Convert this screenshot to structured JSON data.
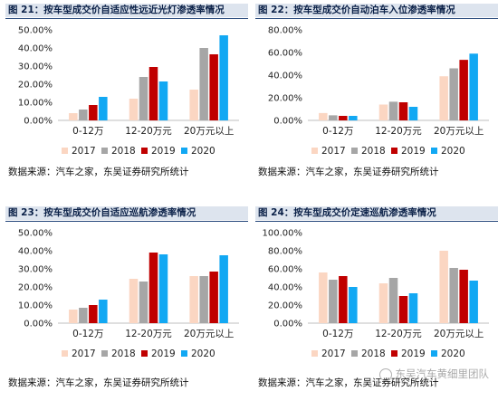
{
  "colors": {
    "series": [
      "#fbd6c2",
      "#a6a6a6",
      "#c00000",
      "#12a8f3"
    ],
    "title_bg": "#dde4ee",
    "title_line": "#24467a"
  },
  "panels": [
    {
      "title": "图 21：按车型成交价自适应性远近光灯渗透率情况",
      "source": "数据来源：汽车之家，东吴证券研究所统计"
    },
    {
      "title": "图 22：按车型成交价自动泊车入位渗透率情况",
      "source": "数据来源：汽车之家，东吴证券研究所统计"
    },
    {
      "title": "图 23：按车型成交价自适应巡航渗透率情况",
      "source": "数据来源：汽车之家，东吴证券研究所统计"
    },
    {
      "title": "图 24：按车型成交价定速巡航渗透率情况",
      "source": "数据来源：汽车之家，东吴证券研究所统计"
    }
  ],
  "watermark": "东吴汽车黄细里团队",
  "chart_data": [
    {
      "type": "bar",
      "title": "图 21：按车型成交价自适应性远近光灯渗透率情况",
      "categories": [
        "0-12万",
        "12-20万元",
        "20万元以上"
      ],
      "ylim": [
        0,
        0.5
      ],
      "yticks": [
        0,
        0.1,
        0.2,
        0.3,
        0.4,
        0.5
      ],
      "tick_labels": [
        "0.00%",
        "10.00%",
        "20.00%",
        "30.00%",
        "40.00%",
        "50.00%"
      ],
      "series": [
        {
          "name": "2017",
          "values": [
            0.04,
            0.12,
            0.17
          ]
        },
        {
          "name": "2018",
          "values": [
            0.06,
            0.24,
            0.4
          ]
        },
        {
          "name": "2019",
          "values": [
            0.085,
            0.295,
            0.365
          ]
        },
        {
          "name": "2020",
          "values": [
            0.13,
            0.215,
            0.47
          ]
        }
      ],
      "grid": false,
      "legend": "bottom"
    },
    {
      "type": "bar",
      "title": "图 22：按车型成交价自动泊车入位渗透率情况",
      "categories": [
        "0-12万",
        "12-20万元",
        "20万元以上"
      ],
      "ylim": [
        0,
        0.8
      ],
      "yticks": [
        0,
        0.2,
        0.4,
        0.6,
        0.8
      ],
      "tick_labels": [
        "0.00%",
        "20.00%",
        "40.00%",
        "60.00%",
        "80.00%"
      ],
      "series": [
        {
          "name": "2017",
          "values": [
            0.065,
            0.14,
            0.39
          ]
        },
        {
          "name": "2018",
          "values": [
            0.045,
            0.165,
            0.46
          ]
        },
        {
          "name": "2019",
          "values": [
            0.04,
            0.16,
            0.535
          ]
        },
        {
          "name": "2020",
          "values": [
            0.04,
            0.12,
            0.59
          ]
        }
      ],
      "grid": false,
      "legend": "bottom"
    },
    {
      "type": "bar",
      "title": "图 23：按车型成交价自适应巡航渗透率情况",
      "categories": [
        "0-12万",
        "12-20万元",
        "20万元以上"
      ],
      "ylim": [
        0,
        0.5
      ],
      "yticks": [
        0,
        0.1,
        0.2,
        0.3,
        0.4,
        0.5
      ],
      "tick_labels": [
        "0.00%",
        "10.00%",
        "20.00%",
        "30.00%",
        "40.00%",
        "50.00%"
      ],
      "series": [
        {
          "name": "2017",
          "values": [
            0.075,
            0.245,
            0.26
          ]
        },
        {
          "name": "2018",
          "values": [
            0.085,
            0.23,
            0.26
          ]
        },
        {
          "name": "2019",
          "values": [
            0.1,
            0.39,
            0.285
          ]
        },
        {
          "name": "2020",
          "values": [
            0.13,
            0.38,
            0.375
          ]
        }
      ],
      "grid": false,
      "legend": "bottom"
    },
    {
      "type": "bar",
      "title": "图 24：按车型成交价定速巡航渗透率情况",
      "categories": [
        "0-12万",
        "12-20万元",
        "20万元以上"
      ],
      "ylim": [
        0,
        1.0
      ],
      "yticks": [
        0,
        0.2,
        0.4,
        0.6,
        0.8,
        1.0
      ],
      "tick_labels": [
        "0.00%",
        "20.00%",
        "40.00%",
        "60.00%",
        "80.00%",
        "100.00%"
      ],
      "series": [
        {
          "name": "2017",
          "values": [
            0.56,
            0.44,
            0.8
          ]
        },
        {
          "name": "2018",
          "values": [
            0.48,
            0.5,
            0.61
          ]
        },
        {
          "name": "2019",
          "values": [
            0.52,
            0.3,
            0.59
          ]
        },
        {
          "name": "2020",
          "values": [
            0.4,
            0.33,
            0.47
          ]
        }
      ],
      "grid": false,
      "legend": "bottom"
    }
  ]
}
